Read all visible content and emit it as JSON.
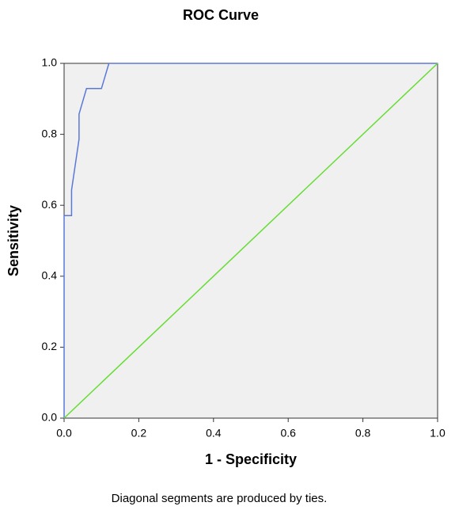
{
  "chart_data": {
    "type": "line",
    "title": "ROC Curve",
    "xlabel": "1 - Specificity",
    "ylabel": "Sensitivity",
    "annotation": "Diagonal segments are produced by ties.",
    "series": [
      {
        "color": "#5b78d8",
        "x": [
          0,
          0,
          0.02,
          0.02,
          0.04,
          0.04,
          0.06,
          0.1,
          0.12,
          1
        ],
        "values": [
          0,
          0.571,
          0.571,
          0.643,
          0.786,
          0.857,
          0.929,
          0.929,
          1,
          1
        ]
      },
      {
        "color": "#66dd33",
        "x": [
          0,
          1
        ],
        "values": [
          0,
          1
        ]
      }
    ],
    "xlim": [
      0,
      1
    ],
    "ylim": [
      0,
      1
    ],
    "xticks": [
      {
        "value": 0,
        "label": "0.0"
      },
      {
        "value": 0.2,
        "label": "0.2"
      },
      {
        "value": 0.4,
        "label": "0.4"
      },
      {
        "value": 0.6,
        "label": "0.6"
      },
      {
        "value": 0.8,
        "label": "0.8"
      },
      {
        "value": 1,
        "label": "1.0"
      }
    ],
    "yticks": [
      {
        "value": 0,
        "label": "0.0"
      },
      {
        "value": 0.2,
        "label": "0.2"
      },
      {
        "value": 0.4,
        "label": "0.4"
      },
      {
        "value": 0.6,
        "label": "0.6"
      },
      {
        "value": 0.8,
        "label": "0.8"
      },
      {
        "value": 1,
        "label": "1.0"
      }
    ],
    "background": "#f0f0f0"
  }
}
